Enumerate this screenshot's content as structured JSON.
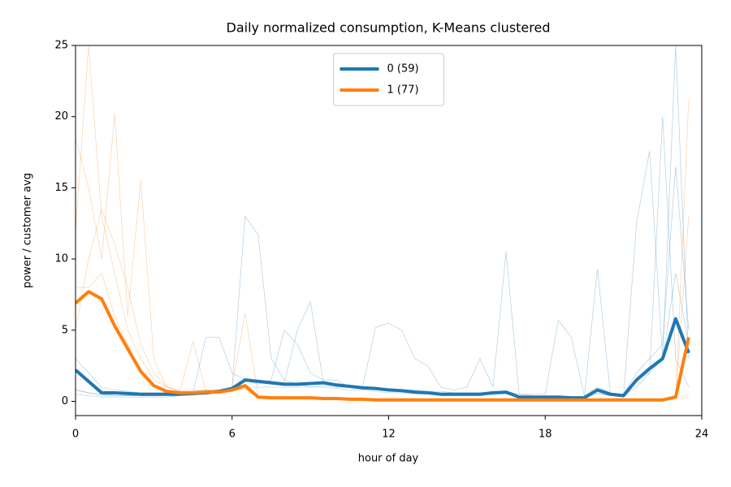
{
  "chart_data": {
    "type": "line",
    "title": "Daily normalized consumption, K-Means clustered",
    "x_label": "hour of day",
    "y_label": "power / customer avg",
    "xlim": [
      0,
      24
    ],
    "xticks": [
      0,
      6,
      12,
      18,
      24
    ],
    "ylim": [
      -1,
      25
    ],
    "yticks": [
      0,
      5,
      10,
      15,
      20,
      25
    ],
    "legend": "upper center",
    "x": [
      0,
      0.5,
      1,
      1.5,
      2,
      2.5,
      3,
      3.5,
      4,
      4.5,
      5,
      5.5,
      6,
      6.5,
      7,
      7.5,
      8,
      8.5,
      9,
      9.5,
      10,
      10.5,
      11,
      11.5,
      12,
      12.5,
      13,
      13.5,
      14,
      14.5,
      15,
      15.5,
      16,
      16.5,
      17,
      17.5,
      18,
      18.5,
      19,
      19.5,
      20,
      20.5,
      21,
      21.5,
      22,
      22.5,
      23,
      23.5
    ],
    "series": [
      {
        "color": "#1f77b4",
        "values": [
          0.5,
          0.4,
          0.3,
          0.3,
          0.3,
          0.3,
          0.3,
          0.3,
          0.4,
          0.5,
          0.6,
          0.8,
          1.0,
          13.0,
          11.7,
          3.0,
          1.5,
          1.2,
          1.0,
          1.0,
          0.9,
          0.8,
          0.8,
          0.7,
          0.6,
          0.6,
          0.5,
          0.5,
          0.4,
          0.4,
          0.4,
          0.4,
          0.5,
          0.5,
          0.3,
          0.3,
          0.3,
          0.3,
          0.3,
          0.3,
          0.5,
          0.4,
          0.4,
          1.0,
          2.0,
          3.0,
          9.0,
          4.0
        ]
      },
      {
        "color": "#1f77b4",
        "values": [
          0.8,
          0.6,
          0.5,
          0.4,
          0.4,
          0.4,
          0.4,
          0.5,
          0.5,
          0.6,
          4.5,
          4.5,
          2.0,
          1.5,
          1.2,
          1.5,
          5.0,
          4.0,
          2.0,
          1.5,
          1.5,
          1.0,
          1.0,
          5.2,
          5.5,
          5.0,
          3.0,
          2.5,
          1.0,
          0.8,
          1.0,
          3.0,
          1.0,
          10.5,
          0.5,
          0.4,
          0.3,
          0.3,
          0.3,
          0.3,
          9.3,
          0.5,
          0.4,
          12.5,
          17.6,
          3.0,
          25.0,
          3.0
        ]
      },
      {
        "color": "#1f77b4",
        "values": [
          3.0,
          2.0,
          1.0,
          0.8,
          0.7,
          0.6,
          0.6,
          0.6,
          0.7,
          0.7,
          0.8,
          0.8,
          1.0,
          1.5,
          1.5,
          1.4,
          1.3,
          5.0,
          7.0,
          1.3,
          1.2,
          1.1,
          1.0,
          1.0,
          0.9,
          0.8,
          0.8,
          0.7,
          0.7,
          0.6,
          0.6,
          0.6,
          0.7,
          0.7,
          0.5,
          0.5,
          0.5,
          5.7,
          4.5,
          0.4,
          1.0,
          0.6,
          0.5,
          2.0,
          3.0,
          4.0,
          16.5,
          5.0
        ]
      },
      {
        "color": "#1f77b4",
        "values": [
          0.8,
          0.6,
          0.4,
          0.4,
          0.4,
          0.4,
          0.4,
          0.4,
          0.5,
          0.5,
          0.5,
          0.6,
          0.7,
          1.0,
          1.0,
          1.0,
          1.0,
          1.0,
          1.0,
          1.1,
          1.0,
          1.0,
          0.9,
          0.9,
          0.8,
          0.8,
          0.7,
          0.7,
          0.6,
          0.6,
          0.6,
          0.6,
          0.6,
          0.6,
          0.3,
          0.3,
          0.3,
          0.3,
          0.3,
          0.3,
          0.6,
          0.4,
          0.4,
          1.5,
          2.0,
          20.0,
          3.0,
          1.0
        ]
      },
      {
        "color": "#ff7f0e",
        "values": [
          12.0,
          25.0,
          13.0,
          9.0,
          5.0,
          3.0,
          1.5,
          1.0,
          0.8,
          0.8,
          0.8,
          0.8,
          1.0,
          1.2,
          0.3,
          0.2,
          0.2,
          0.2,
          0.2,
          0.2,
          0.2,
          0.1,
          0.1,
          0.1,
          0.1,
          0.1,
          0.1,
          0.1,
          0.1,
          0.1,
          0.1,
          0.1,
          0.1,
          0.1,
          0.1,
          0.1,
          0.1,
          0.1,
          0.1,
          0.1,
          0.1,
          0.1,
          0.1,
          0.1,
          0.1,
          0.2,
          0.2,
          0.5
        ]
      },
      {
        "color": "#ff7f0e",
        "values": [
          5.0,
          10.0,
          13.5,
          11.0,
          8.0,
          4.0,
          2.0,
          1.0,
          0.7,
          4.2,
          0.7,
          0.7,
          1.0,
          6.2,
          0.4,
          0.3,
          0.3,
          0.3,
          0.3,
          0.3,
          0.2,
          0.2,
          0.2,
          0.2,
          0.2,
          0.2,
          0.2,
          0.1,
          0.1,
          0.1,
          0.1,
          0.1,
          0.1,
          0.1,
          0.1,
          0.1,
          0.1,
          0.1,
          0.1,
          0.1,
          0.1,
          0.1,
          0.1,
          0.1,
          0.1,
          0.1,
          0.2,
          13.0
        ]
      },
      {
        "color": "#ff7f0e",
        "values": [
          18.5,
          15.0,
          10.0,
          20.2,
          6.0,
          15.5,
          3.0,
          1.0,
          0.7,
          0.6,
          0.6,
          0.6,
          0.8,
          0.9,
          0.2,
          0.2,
          0.2,
          0.2,
          0.2,
          0.2,
          0.2,
          0.2,
          0.1,
          0.1,
          0.1,
          0.1,
          0.1,
          0.1,
          0.1,
          0.1,
          0.1,
          0.1,
          0.1,
          0.1,
          0.1,
          0.1,
          0.1,
          0.1,
          0.1,
          0.1,
          0.1,
          0.1,
          0.1,
          0.1,
          0.1,
          0.1,
          0.1,
          0.3
        ]
      },
      {
        "color": "#ff7f0e",
        "values": [
          8.0,
          8.0,
          9.0,
          6.0,
          4.0,
          2.0,
          1.0,
          0.6,
          0.5,
          0.5,
          0.5,
          0.6,
          0.7,
          0.9,
          0.2,
          0.2,
          0.2,
          0.2,
          0.2,
          0.2,
          0.2,
          0.2,
          0.2,
          0.2,
          0.1,
          0.1,
          0.1,
          0.1,
          0.1,
          0.1,
          0.1,
          0.1,
          0.1,
          0.1,
          0.1,
          0.1,
          0.1,
          0.1,
          0.1,
          0.1,
          0.1,
          0.1,
          0.1,
          0.1,
          0.1,
          0.1,
          0.2,
          21.2
        ]
      },
      {
        "name": "0 (59)",
        "color": "#1f77b4",
        "values": [
          2.2,
          1.4,
          0.6,
          0.6,
          0.55,
          0.5,
          0.5,
          0.5,
          0.5,
          0.55,
          0.6,
          0.7,
          0.9,
          1.5,
          1.4,
          1.3,
          1.2,
          1.2,
          1.25,
          1.3,
          1.15,
          1.05,
          0.95,
          0.9,
          0.8,
          0.75,
          0.65,
          0.6,
          0.5,
          0.5,
          0.5,
          0.5,
          0.6,
          0.65,
          0.3,
          0.3,
          0.3,
          0.3,
          0.25,
          0.25,
          0.8,
          0.5,
          0.4,
          1.5,
          2.3,
          3.0,
          5.8,
          3.4
        ]
      },
      {
        "name": "1 (77)",
        "color": "#ff7f0e",
        "values": [
          6.9,
          7.7,
          7.2,
          5.3,
          3.7,
          2.1,
          1.1,
          0.7,
          0.6,
          0.6,
          0.65,
          0.65,
          0.8,
          1.1,
          0.3,
          0.25,
          0.25,
          0.25,
          0.25,
          0.2,
          0.2,
          0.15,
          0.15,
          0.1,
          0.1,
          0.1,
          0.1,
          0.1,
          0.1,
          0.1,
          0.1,
          0.1,
          0.1,
          0.1,
          0.1,
          0.1,
          0.1,
          0.1,
          0.1,
          0.1,
          0.1,
          0.1,
          0.1,
          0.1,
          0.1,
          0.1,
          0.3,
          4.5
        ]
      }
    ]
  }
}
